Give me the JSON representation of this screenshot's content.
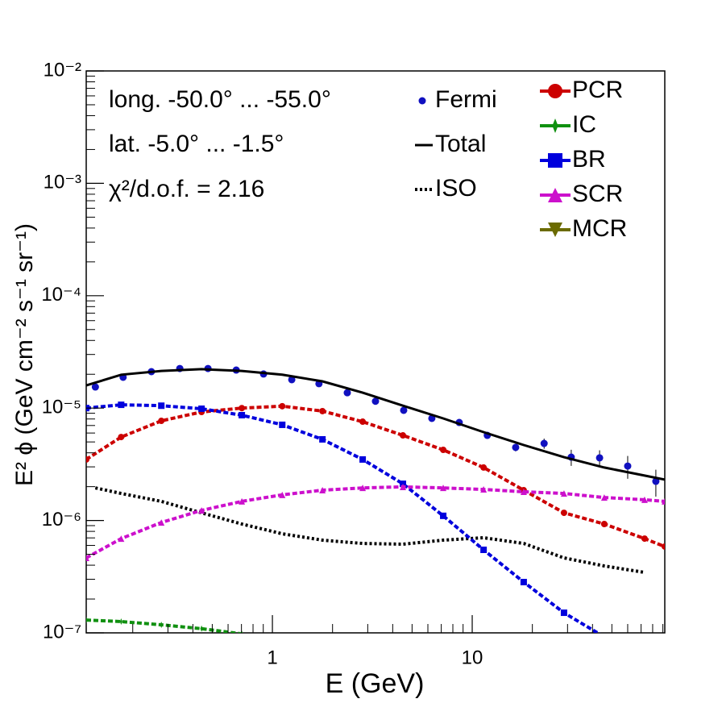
{
  "chart_data": {
    "type": "line",
    "xlog": true,
    "ylog": true,
    "x_label": "E (GeV)",
    "y_label": "E² ϕ (GeV cm⁻² s⁻¹ sr⁻¹)",
    "annotations": [
      "long. -50.0° ... -55.0°",
      "lat. -5.0° ... -1.5°",
      "χ²/d.o.f. = 2.16"
    ],
    "xlim": [
      0.117,
      92
    ],
    "xticks": [
      1,
      10
    ],
    "ylim": [
      1e-07,
      0.01
    ],
    "yticks": [
      {
        "value": 1e-07,
        "label": "10⁻⁷"
      },
      {
        "value": 1e-06,
        "label": "10⁻⁶"
      },
      {
        "value": 1e-05,
        "label": "10⁻⁵"
      },
      {
        "value": 0.0001,
        "label": "10⁻⁴"
      },
      {
        "value": 0.001,
        "label": "10⁻³"
      },
      {
        "value": 0.01,
        "label": "10⁻²"
      }
    ],
    "series": [
      {
        "name": "Fermi",
        "color": "#1010c0",
        "style": "points",
        "marker": "circle",
        "x": [
          0.13,
          0.179,
          0.248,
          0.344,
          0.476,
          0.659,
          0.903,
          1.25,
          1.71,
          2.37,
          3.28,
          4.54,
          6.28,
          8.61,
          11.9,
          16.5,
          22.9,
          31.3,
          43.4,
          60.0,
          83.0
        ],
        "values": [
          1.54e-05,
          1.88e-05,
          2.11e-05,
          2.25e-05,
          2.25e-05,
          2.18e-05,
          2.01e-05,
          1.79e-05,
          1.65e-05,
          1.37e-05,
          1.15e-05,
          9.55e-06,
          8.1e-06,
          7.45e-06,
          5.72e-06,
          4.47e-06,
          4.85e-06,
          3.66e-06,
          3.61e-06,
          3.05e-06,
          2.23e-06
        ],
        "errors": [
          5e-07,
          5e-07,
          6e-07,
          6e-07,
          6e-07,
          6e-07,
          5e-07,
          5e-07,
          4e-07,
          4e-07,
          3e-07,
          3e-07,
          3e-07,
          3e-07,
          4e-07,
          3.5e-07,
          5e-07,
          6e-07,
          6e-07,
          7e-07,
          6e-07
        ]
      },
      {
        "name": "Total",
        "color": "#000000",
        "style": "solid",
        "x": [
          0.117,
          0.175,
          0.278,
          0.442,
          0.703,
          1.12,
          1.78,
          2.83,
          4.5,
          7.16,
          11.4,
          18.1,
          28.8,
          45.8,
          72.9,
          92.0
        ],
        "values": [
          1.59e-05,
          1.98e-05,
          2.14e-05,
          2.22e-05,
          2.14e-05,
          1.98e-05,
          1.73e-05,
          1.37e-05,
          1.05e-05,
          8.1e-06,
          6.11e-06,
          4.69e-06,
          3.66e-06,
          2.96e-06,
          2.51e-06,
          2.31e-06
        ]
      },
      {
        "name": "ISO",
        "color": "#000000",
        "style": "dotted",
        "x": [
          0.13,
          0.175,
          0.278,
          0.442,
          0.703,
          1.12,
          1.78,
          2.83,
          4.5,
          7.16,
          11.4,
          18.1,
          28.8,
          45.8,
          72.9
        ],
        "values": [
          1.95e-06,
          1.74e-06,
          1.48e-06,
          1.17e-06,
          9.3e-07,
          7.62e-07,
          6.68e-07,
          6.25e-07,
          6.15e-07,
          6.68e-07,
          7.02e-07,
          6.25e-07,
          4.65e-07,
          3.94e-07,
          3.45e-07
        ]
      },
      {
        "name": "PCR",
        "color": "#cc0000",
        "style": "dashed",
        "marker": "circle",
        "x": [
          0.117,
          0.175,
          0.278,
          0.442,
          0.703,
          1.12,
          1.78,
          2.83,
          4.5,
          7.16,
          11.4,
          18.1,
          28.8,
          45.8,
          72.9,
          92.0
        ],
        "values": [
          3.49e-06,
          5.53e-06,
          7.7e-06,
          9.24e-06,
          1e-05,
          1.04e-05,
          9.4e-06,
          7.57e-06,
          5.72e-06,
          4.25e-06,
          2.96e-06,
          1.86e-06,
          1.17e-06,
          9.3e-07,
          6.9e-07,
          5.86e-07
        ]
      },
      {
        "name": "IC",
        "color": "#109010",
        "style": "dashed",
        "marker": "star",
        "x": [
          0.117,
          0.175,
          0.278,
          0.442,
          0.703
        ],
        "values": [
          1.3e-07,
          1.26e-07,
          1.18e-07,
          1.09e-07,
          9.8e-08
        ]
      },
      {
        "name": "BR",
        "color": "#0000dd",
        "style": "dashed",
        "marker": "square",
        "x": [
          0.117,
          0.175,
          0.278,
          0.442,
          0.703,
          1.12,
          1.78,
          2.83,
          4.5,
          7.16,
          11.4,
          18.1,
          28.8,
          45.8
        ],
        "values": [
          1e-05,
          1.07e-05,
          1.05e-05,
          9.87e-06,
          8.65e-06,
          7.1e-06,
          5.27e-06,
          3.49e-06,
          2.12e-06,
          1.1e-06,
          5.48e-07,
          2.83e-07,
          1.51e-07,
          9.2e-08
        ]
      },
      {
        "name": "SCR",
        "color": "#cc10cc",
        "style": "dashed",
        "marker": "triangle",
        "x": [
          0.117,
          0.175,
          0.278,
          0.442,
          0.703,
          1.12,
          1.78,
          2.83,
          4.5,
          7.16,
          11.4,
          18.1,
          28.8,
          45.8,
          72.9,
          92.0
        ],
        "values": [
          4.65e-07,
          6.9e-07,
          9.6e-07,
          1.23e-06,
          1.48e-06,
          1.69e-06,
          1.86e-06,
          1.95e-06,
          1.99e-06,
          1.95e-06,
          1.89e-06,
          1.8e-06,
          1.74e-06,
          1.6e-06,
          1.53e-06,
          1.48e-06
        ]
      },
      {
        "name": "MCR",
        "color": "#6b6b00",
        "style": "dashed",
        "marker": "down-triangle",
        "x": [],
        "values": []
      }
    ]
  }
}
